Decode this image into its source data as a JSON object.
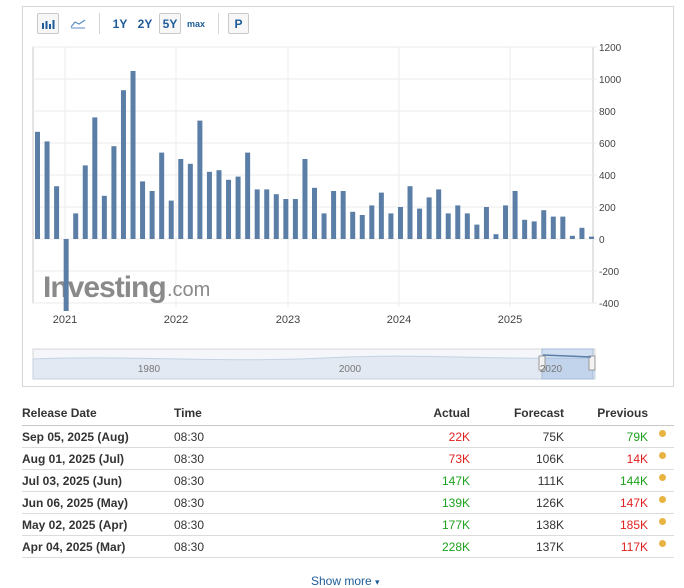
{
  "toolbar": {
    "range_1y": "1Y",
    "range_2y": "2Y",
    "range_5y": "5Y",
    "range_max": "max",
    "print": "P",
    "active_range": "5Y"
  },
  "watermark": {
    "brand": "Investing",
    "suffix": ".com"
  },
  "chart_data": {
    "type": "bar",
    "title": "",
    "ylim": [
      -400,
      1200
    ],
    "yticks": [
      1200,
      1000,
      800,
      600,
      400,
      200,
      0,
      -200,
      -400
    ],
    "xtick_labels": [
      "2021",
      "2022",
      "2023",
      "2024",
      "2025"
    ],
    "values": [
      670,
      610,
      330,
      -450,
      160,
      460,
      760,
      270,
      580,
      930,
      1050,
      360,
      300,
      540,
      240,
      500,
      470,
      740,
      420,
      430,
      370,
      390,
      540,
      310,
      310,
      280,
      250,
      250,
      500,
      320,
      160,
      300,
      300,
      170,
      150,
      210,
      290,
      160,
      200,
      330,
      190,
      260,
      310,
      160,
      210,
      160,
      90,
      200,
      30,
      210,
      300,
      120,
      110,
      180,
      140,
      140,
      20,
      70,
      15
    ],
    "bar_color": "#5b7ea6",
    "navigator": {
      "labels": [
        "1980",
        "2000",
        "2020"
      ]
    }
  },
  "table": {
    "headers": {
      "date": "Release Date",
      "time": "Time",
      "actual": "Actual",
      "forecast": "Forecast",
      "previous": "Previous"
    },
    "rows": [
      {
        "date": "Sep 05, 2025 (Aug)",
        "time": "08:30",
        "actual": "22K",
        "actual_status": "neg",
        "forecast": "75K",
        "previous": "79K",
        "previous_status": "pos"
      },
      {
        "date": "Aug 01, 2025 (Jul)",
        "time": "08:30",
        "actual": "73K",
        "actual_status": "neg",
        "forecast": "106K",
        "previous": "14K",
        "previous_status": "neg"
      },
      {
        "date": "Jul 03, 2025 (Jun)",
        "time": "08:30",
        "actual": "147K",
        "actual_status": "pos",
        "forecast": "111K",
        "previous": "144K",
        "previous_status": "pos"
      },
      {
        "date": "Jun 06, 2025 (May)",
        "time": "08:30",
        "actual": "139K",
        "actual_status": "pos",
        "forecast": "126K",
        "previous": "147K",
        "previous_status": "neg"
      },
      {
        "date": "May 02, 2025 (Apr)",
        "time": "08:30",
        "actual": "177K",
        "actual_status": "pos",
        "forecast": "138K",
        "previous": "185K",
        "previous_status": "neg"
      },
      {
        "date": "Apr 04, 2025 (Mar)",
        "time": "08:30",
        "actual": "228K",
        "actual_status": "pos",
        "forecast": "137K",
        "previous": "117K",
        "previous_status": "neg"
      }
    ]
  },
  "show_more": "Show more"
}
